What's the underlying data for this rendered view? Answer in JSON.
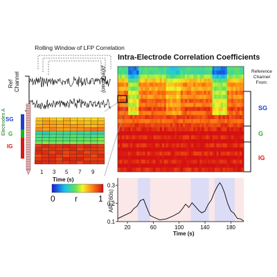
{
  "titles": {
    "rolling_window": "Rolling Window of LFP Correlation",
    "main": "Intra-Electrode Correlation Coefficients",
    "rho": "ρ(ref,chan)",
    "ref_channel": "Ref Channel",
    "reference_channel_from": "Reference Channel From:"
  },
  "layers": {
    "sg": "SG",
    "g": "G",
    "ig": "IG",
    "electrodes": "Electrodes A"
  },
  "colors": {
    "sg": "#1a3fd6",
    "g": "#1ab51a",
    "ig": "#e01515"
  },
  "left_heatmap": {
    "xlabel": "Time (s)",
    "xticks": [
      "1",
      "3",
      "5",
      "7",
      "9"
    ]
  },
  "colorbar": {
    "min_label": "0",
    "mid_label": "r",
    "max_label": "1"
  },
  "chart_data": {
    "type": "line",
    "xlabel": "Time (s)",
    "ylabel": "ARI (60s)",
    "xticks": [
      "20",
      "60",
      "100",
      "140",
      "180"
    ],
    "yticks": [
      "0.1",
      "0.2",
      "0.3"
    ],
    "xlim": [
      5,
      200
    ],
    "ylim": [
      0.1,
      0.34
    ],
    "x": [
      5,
      15,
      25,
      30,
      35,
      40,
      45,
      50,
      55,
      60,
      70,
      80,
      90,
      100,
      105,
      110,
      115,
      120,
      125,
      130,
      135,
      140,
      145,
      150,
      155,
      160,
      163,
      166,
      170,
      175,
      180,
      185,
      190,
      195,
      200
    ],
    "y": [
      0.12,
      0.13,
      0.15,
      0.17,
      0.19,
      0.21,
      0.22,
      0.18,
      0.14,
      0.12,
      0.11,
      0.12,
      0.13,
      0.15,
      0.17,
      0.19,
      0.18,
      0.2,
      0.18,
      0.16,
      0.15,
      0.16,
      0.19,
      0.22,
      0.26,
      0.3,
      0.31,
      0.3,
      0.26,
      0.2,
      0.16,
      0.14,
      0.12,
      0.11,
      0.1
    ],
    "shaded_blue": [
      [
        36,
        55
      ],
      [
        118,
        146
      ],
      [
        155,
        186
      ]
    ]
  }
}
